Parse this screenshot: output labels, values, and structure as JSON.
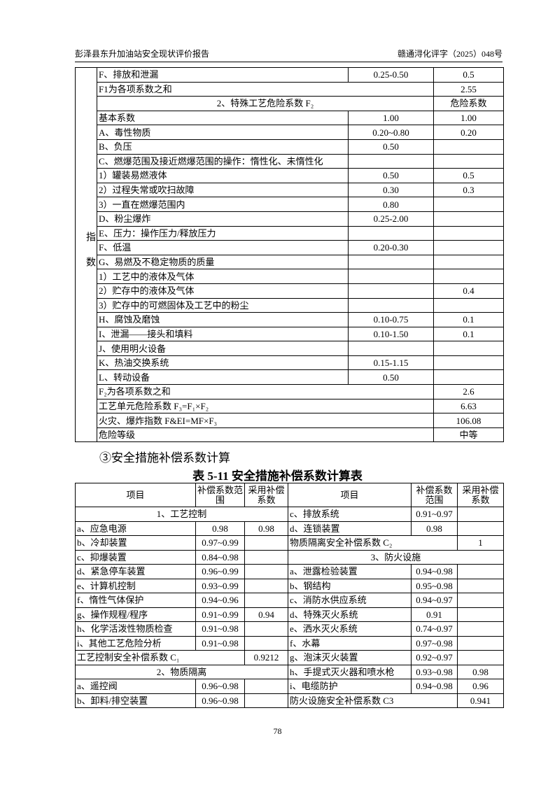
{
  "header": {
    "left": "彭泽县东升加油站安全现状评价报告",
    "right": "赣通浔化评字（2025）048号"
  },
  "table1": {
    "side_label": "指数",
    "rows": [
      [
        "F、排放和泄漏",
        "0.25-0.50",
        "0.5"
      ],
      [
        "F1为各项系数之和",
        "2.55"
      ],
      [
        "2、特殊工艺危险系数 F₂",
        "危险系数"
      ],
      [
        "基本系数",
        "1.00",
        "1.00"
      ],
      [
        "A、毒性物质",
        "0.20~0.80",
        "0.20"
      ],
      [
        "B、负压",
        "0.50",
        null
      ],
      [
        "C、燃爆范围及接近燃爆范围的操作：惰性化、未惰性化",
        null,
        null
      ],
      [
        "1）罐装易燃液体",
        "0.50",
        "0.5"
      ],
      [
        "2）过程失常或吹扫故障",
        "0.30",
        "0.3"
      ],
      [
        "3）一直在燃爆范围内",
        "0.80",
        null
      ],
      [
        "D、粉尘爆炸",
        "0.25-2.00",
        null
      ],
      [
        "E、压力：操作压力/释放压力",
        null,
        null
      ],
      [
        "F、低温",
        "0.20-0.30",
        null
      ],
      [
        "G、易燃及不稳定物质的质量",
        null,
        null
      ],
      [
        "1）工艺中的液体及气体",
        null,
        null
      ],
      [
        "2）贮存中的液体及气体",
        null,
        "0.4"
      ],
      [
        "3）贮存中的可燃固体及工艺中的粉尘",
        null,
        null
      ],
      [
        "H、腐蚀及磨蚀",
        "0.10-0.75",
        "0.1"
      ],
      [
        "I、泄漏——接头和填料",
        "0.10-1.50",
        "0.1"
      ],
      [
        "J、使用明火设备",
        null,
        null
      ],
      [
        "K、热油交换系统",
        "0.15-1.15",
        null
      ],
      [
        "L、转动设备",
        "0.50",
        null
      ],
      [
        "F₂为各项系数之和",
        "2.6"
      ],
      [
        "工艺单元危险系数 F₃=F₁×F₂",
        "6.63"
      ],
      [
        "火灾、爆炸指数 F&EI=MF×F₃",
        "106.08"
      ],
      [
        "危险等级",
        "中等"
      ]
    ]
  },
  "section_heading": "③安全措施补偿系数计算",
  "table2": {
    "caption": "表 5-11 安全措施补偿系数计算表",
    "header": {
      "left": [
        "项目",
        "补偿系数范围",
        "采用补偿系数"
      ],
      "right": [
        "项目",
        "补偿系数范围",
        "采用补偿系数"
      ]
    },
    "rows": [
      {
        "left": [
          "1、工艺控制"
        ],
        "right": [
          "c、排放系统",
          "0.91~0.97",
          null
        ]
      },
      {
        "left": [
          "a、应急电源",
          "0.98",
          "0.98"
        ],
        "right": [
          "d、连锁装置",
          "0.98",
          null
        ]
      },
      {
        "left": [
          "b、冷却装置",
          "0.97~0.99",
          null
        ],
        "right": [
          "物质隔离安全补偿系数 C₂",
          "1"
        ]
      },
      {
        "left": [
          "c、抑爆装置",
          "0.84~0.98",
          null
        ],
        "right": [
          "3、防火设施"
        ]
      },
      {
        "left": [
          "d、紧急停车装置",
          "0.96~0.99",
          null
        ],
        "right": [
          "a、泄露检验装置",
          "0.94~0.98",
          null
        ]
      },
      {
        "left": [
          "e、计算机控制",
          "0.93~0.99",
          null
        ],
        "right": [
          "b、钢结构",
          "0.95~0.98",
          null
        ]
      },
      {
        "left": [
          "f、惰性气体保护",
          "0.94~0.96",
          null
        ],
        "right": [
          "c、消防水供应系统",
          "0.94~0.97",
          null
        ]
      },
      {
        "left": [
          "g、操作规程/程序",
          "0.91~0.99",
          "0.94"
        ],
        "right": [
          "d、特殊灭火系统",
          "0.91",
          null
        ]
      },
      {
        "left": [
          "h、化学活泼性物质检查",
          "0.91~0.98",
          null
        ],
        "right": [
          "e、洒水灭火系统",
          "0.74~0.97",
          null
        ]
      },
      {
        "left": [
          "i、其他工艺危险分析",
          "0.91~0.98",
          null
        ],
        "right": [
          "f、水幕",
          "0.97~0.98",
          null
        ]
      },
      {
        "left": [
          "工艺控制安全补偿系数 C₁",
          "0.9212"
        ],
        "right": [
          "g、泡沫灭火装置",
          "0.92~0.97",
          null
        ]
      },
      {
        "left": [
          "2、物质隔离"
        ],
        "right": [
          "h、手提式灭火器和喷水枪",
          "0.93~0.98",
          "0.98"
        ]
      },
      {
        "left": [
          "a、遥控阀",
          "0.96~0.98",
          null
        ],
        "right": [
          "i、电缆防护",
          "0.94~0.98",
          "0.96"
        ]
      },
      {
        "left": [
          "b、卸料/排空装置",
          "0.96~0.98",
          null
        ],
        "right": [
          "防火设施安全补偿系数 C3",
          "0.941"
        ]
      }
    ]
  },
  "page_number": "78"
}
